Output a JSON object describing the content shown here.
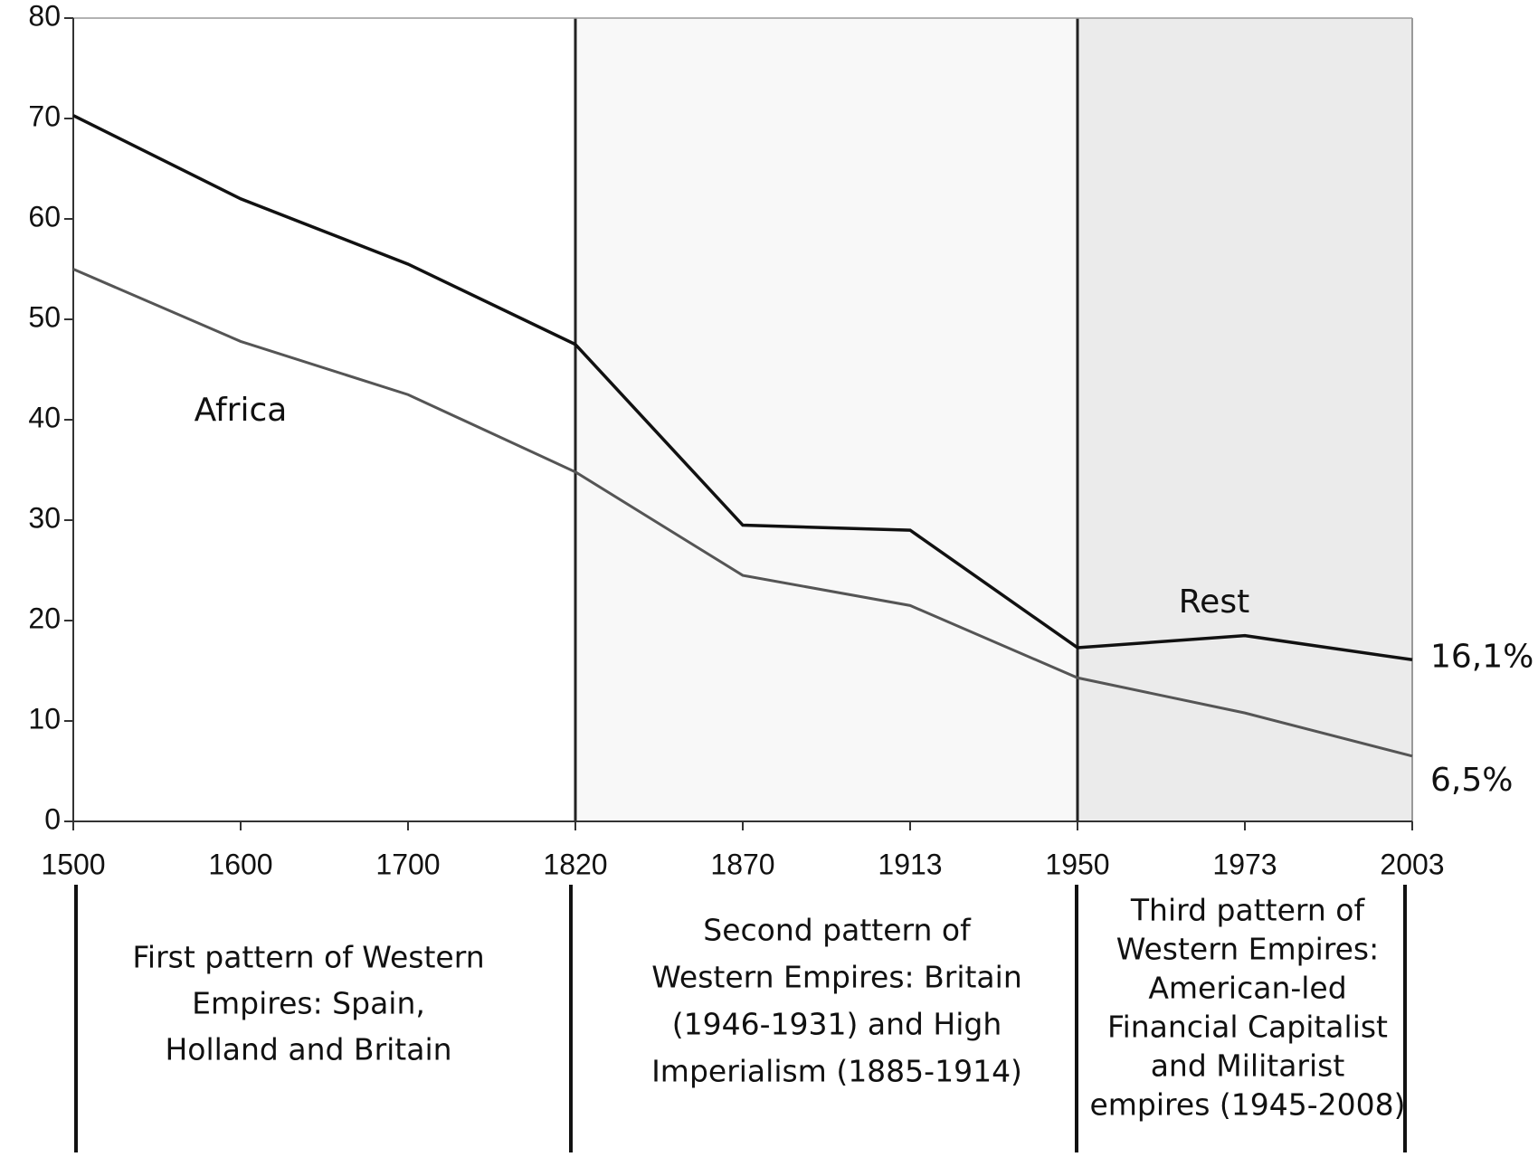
{
  "chart_data": {
    "type": "line",
    "categories": [
      "1500",
      "1600",
      "1700",
      "1820",
      "1870",
      "1913",
      "1950",
      "1973",
      "2003"
    ],
    "series": [
      {
        "color": "#111111",
        "values": [
          70.3,
          62,
          55.5,
          47.5,
          29.5,
          29,
          17.3,
          18.5,
          16.1
        ],
        "value_labels": [
          null,
          null,
          null,
          null,
          null,
          null,
          null,
          null,
          "16,1%"
        ]
      },
      {
        "color": "#555555",
        "values": [
          55,
          47.8,
          42.5,
          34.8,
          24.5,
          21.5,
          14.3,
          10.8,
          6.5
        ],
        "value_labels": [
          null,
          null,
          null,
          null,
          null,
          null,
          null,
          null,
          "6,5%"
        ]
      }
    ],
    "ylim": [
      0,
      80
    ],
    "yticks": [
      0,
      10,
      20,
      30,
      40,
      50,
      60,
      70,
      80
    ],
    "annotations": [
      "Africa",
      "Rest"
    ],
    "periods": [
      {
        "start": "1500",
        "end": "1820",
        "shade": "#ffffff",
        "lines": [
          "First pattern of Western",
          "Empires:  Spain,",
          "Holland and Britain"
        ]
      },
      {
        "start": "1820",
        "end": "1950",
        "shade": "#f8f8f8",
        "lines": [
          "Second pattern of",
          "Western Empires:  Britain",
          "(1946-1931) and High",
          "Imperialism (1885-1914)"
        ]
      },
      {
        "start": "1950",
        "end": "2003",
        "shade": "#ebebeb",
        "lines": [
          "Third pattern of",
          "Western Empires:",
          "American-led",
          "Financial Capitalist",
          "and Militarist",
          "empires (1945-2008)"
        ]
      }
    ]
  }
}
